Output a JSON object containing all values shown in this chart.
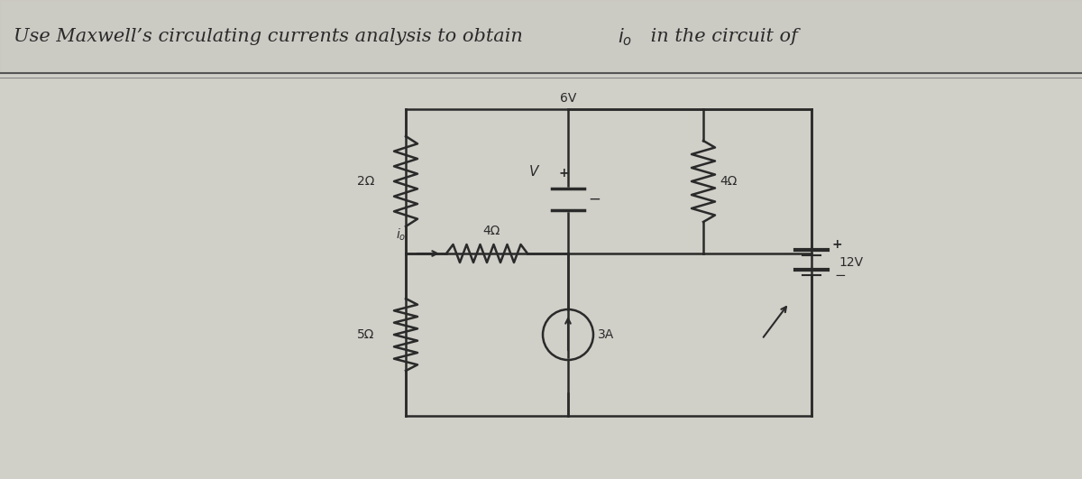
{
  "title": "Use Maxwell’s circulating currents analysis to obtain i₀ in the circuit of",
  "bg_color": "#d0cfc8",
  "circuit_bg": "#e8e6df",
  "line_color": "#2a2a2a",
  "label_color": "#2a2a2a",
  "title_fontsize": 15,
  "label_fontsize": 11,
  "resistor_labels": [
    "2Ω",
    "4Ω",
    "5Ω",
    "4Ω"
  ],
  "voltage_labels": [
    "6V",
    "12V"
  ],
  "current_label": "3A",
  "io_label": "i₀",
  "V_label": "V"
}
